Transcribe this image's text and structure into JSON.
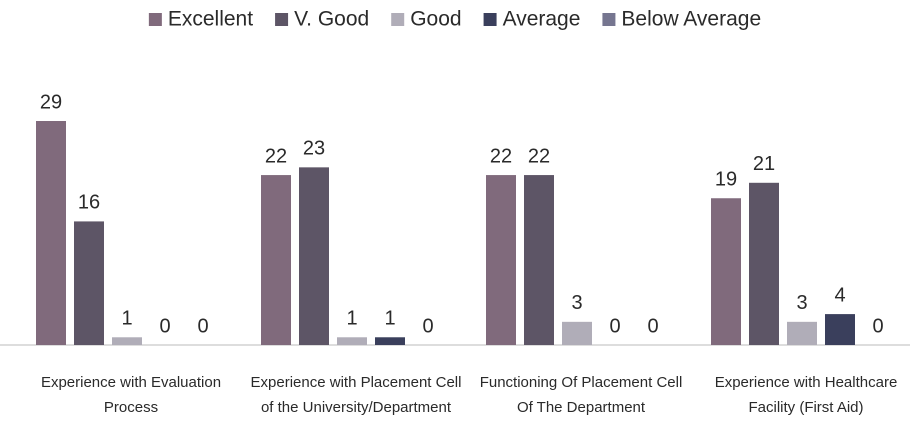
{
  "chart_data": {
    "type": "bar",
    "categories": [
      "Experience with Evaluation Process",
      "Experience with Placement Cell of the University/Department",
      "Functioning Of Placement Cell Of The Department",
      "Experience with Healthcare Facility (First Aid)"
    ],
    "series": [
      {
        "name": "Excellent",
        "color": "#806a7c",
        "values": [
          29,
          22,
          22,
          19
        ]
      },
      {
        "name": "V. Good",
        "color": "#5d5566",
        "values": [
          16,
          23,
          22,
          21
        ]
      },
      {
        "name": "Good",
        "color": "#b0adb8",
        "values": [
          1,
          1,
          3,
          3
        ]
      },
      {
        "name": "Average",
        "color": "#3a3f5c",
        "values": [
          0,
          1,
          0,
          4
        ]
      },
      {
        "name": "Below Average",
        "color": "#767690",
        "values": [
          0,
          0,
          0,
          0
        ]
      }
    ],
    "legend": "top"
  }
}
